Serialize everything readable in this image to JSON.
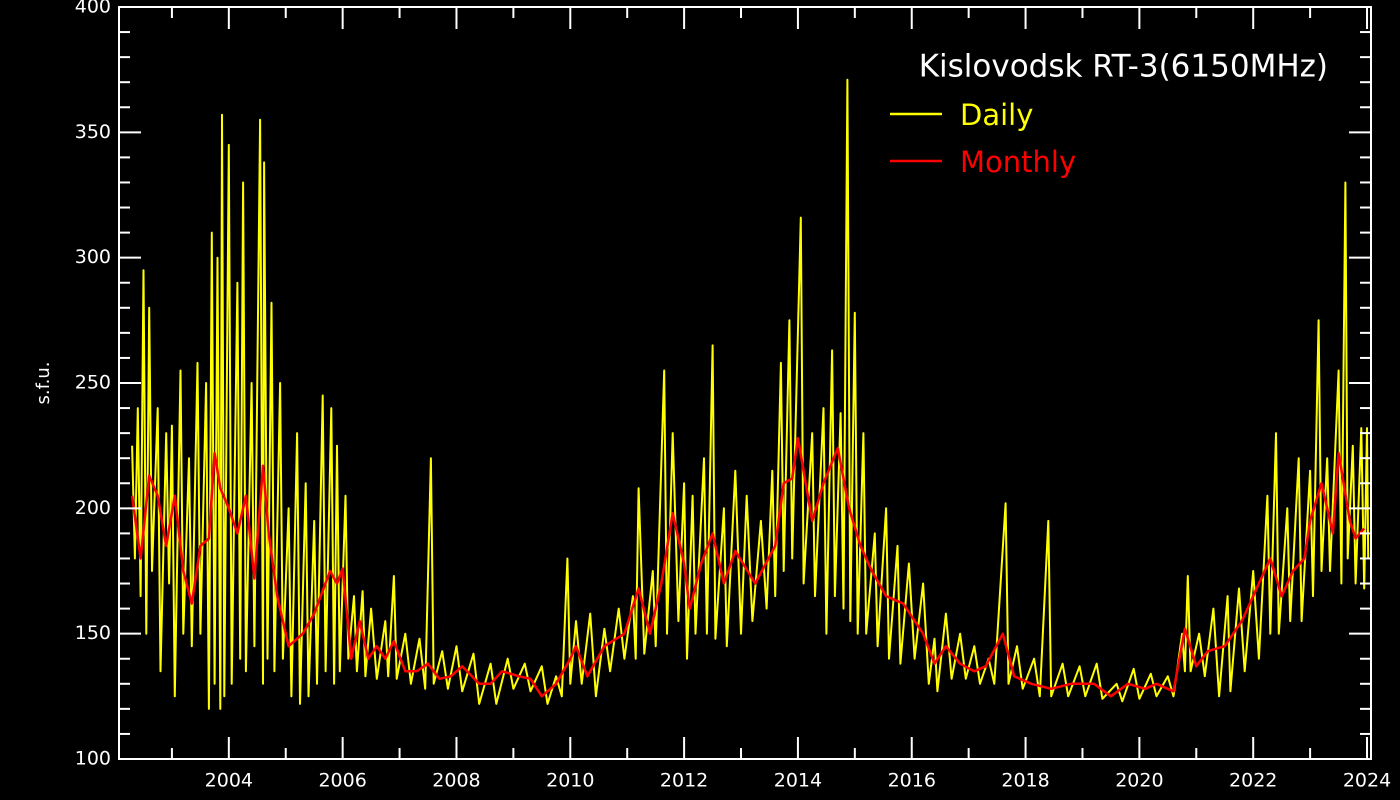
{
  "chart_data": {
    "type": "line",
    "title": "Kislovodsk RT-3(6150MHz)",
    "y_label": "s.f.u.",
    "legend": "upper right",
    "xlim": [
      2002.07,
      2024.07
    ],
    "xticks": [
      2004,
      2006,
      2008,
      2010,
      2012,
      2014,
      2016,
      2018,
      2020,
      2022,
      2024
    ],
    "xminorticks": [
      2003,
      2005,
      2007,
      2009,
      2011,
      2013,
      2015,
      2017,
      2019,
      2021,
      2023
    ],
    "ylim": [
      100,
      400
    ],
    "yticks": [
      100,
      150,
      200,
      250,
      300,
      350,
      400
    ],
    "yminorticks": [
      110,
      120,
      130,
      140,
      160,
      170,
      180,
      190,
      210,
      220,
      230,
      240,
      260,
      270,
      280,
      290,
      310,
      320,
      330,
      340,
      360,
      370,
      380,
      390
    ],
    "series": [
      {
        "name": "Daily",
        "color": "#ffff00",
        "x": [
          2002.3,
          2002.35,
          2002.4,
          2002.45,
          2002.5,
          2002.55,
          2002.6,
          2002.65,
          2002.75,
          2002.8,
          2002.9,
          2002.95,
          2003.0,
          2003.05,
          2003.15,
          2003.2,
          2003.3,
          2003.35,
          2003.45,
          2003.5,
          2003.6,
          2003.65,
          2003.7,
          2003.75,
          2003.8,
          2003.85,
          2003.88,
          2003.92,
          2004.0,
          2004.05,
          2004.15,
          2004.2,
          2004.25,
          2004.3,
          2004.4,
          2004.45,
          2004.55,
          2004.6,
          2004.62,
          2004.68,
          2004.75,
          2004.8,
          2004.9,
          2004.95,
          2005.05,
          2005.1,
          2005.2,
          2005.25,
          2005.35,
          2005.4,
          2005.5,
          2005.55,
          2005.65,
          2005.7,
          2005.8,
          2005.85,
          2005.9,
          2005.95,
          2006.05,
          2006.1,
          2006.2,
          2006.25,
          2006.35,
          2006.4,
          2006.5,
          2006.6,
          2006.75,
          2006.8,
          2006.9,
          2006.95,
          2007.1,
          2007.2,
          2007.35,
          2007.45,
          2007.55,
          2007.6,
          2007.75,
          2007.85,
          2008.0,
          2008.1,
          2008.3,
          2008.4,
          2008.6,
          2008.7,
          2008.9,
          2009.0,
          2009.2,
          2009.3,
          2009.5,
          2009.6,
          2009.75,
          2009.85,
          2009.95,
          2010.0,
          2010.1,
          2010.2,
          2010.35,
          2010.45,
          2010.6,
          2010.7,
          2010.85,
          2010.95,
          2011.1,
          2011.15,
          2011.2,
          2011.3,
          2011.45,
          2011.5,
          2011.65,
          2011.7,
          2011.8,
          2011.9,
          2012.0,
          2012.05,
          2012.15,
          2012.2,
          2012.35,
          2012.4,
          2012.5,
          2012.55,
          2012.7,
          2012.75,
          2012.9,
          2013.0,
          2013.1,
          2013.2,
          2013.35,
          2013.45,
          2013.55,
          2013.6,
          2013.7,
          2013.75,
          2013.85,
          2013.9,
          2014.05,
          2014.1,
          2014.25,
          2014.3,
          2014.45,
          2014.5,
          2014.6,
          2014.65,
          2014.75,
          2014.8,
          2014.87,
          2014.92,
          2015.0,
          2015.05,
          2015.15,
          2015.2,
          2015.35,
          2015.4,
          2015.55,
          2015.6,
          2015.75,
          2015.8,
          2015.95,
          2016.05,
          2016.2,
          2016.3,
          2016.4,
          2016.45,
          2016.6,
          2016.7,
          2016.85,
          2016.95,
          2017.1,
          2017.2,
          2017.35,
          2017.45,
          2017.65,
          2017.7,
          2017.85,
          2017.95,
          2018.15,
          2018.25,
          2018.4,
          2018.45,
          2018.65,
          2018.75,
          2018.95,
          2019.05,
          2019.25,
          2019.35,
          2019.6,
          2019.7,
          2019.9,
          2020.0,
          2020.2,
          2020.3,
          2020.5,
          2020.6,
          2020.75,
          2020.8,
          2020.85,
          2020.9,
          2021.05,
          2021.15,
          2021.3,
          2021.4,
          2021.55,
          2021.6,
          2021.75,
          2021.85,
          2022.0,
          2022.1,
          2022.25,
          2022.3,
          2022.4,
          2022.45,
          2022.6,
          2022.65,
          2022.8,
          2022.85,
          2023.0,
          2023.05,
          2023.15,
          2023.2,
          2023.3,
          2023.35,
          2023.5,
          2023.55,
          2023.62,
          2023.66,
          2023.75,
          2023.8,
          2023.9,
          2023.95,
          2024.0,
          2024.02
        ],
        "values": [
          225,
          180,
          240,
          165,
          295,
          150,
          280,
          175,
          240,
          135,
          230,
          170,
          233,
          125,
          255,
          150,
          220,
          145,
          258,
          150,
          250,
          120,
          310,
          130,
          300,
          120,
          357,
          125,
          345,
          130,
          290,
          140,
          330,
          135,
          250,
          145,
          355,
          130,
          338,
          140,
          282,
          135,
          250,
          140,
          200,
          125,
          230,
          122,
          210,
          125,
          195,
          130,
          245,
          135,
          240,
          130,
          225,
          135,
          205,
          140,
          165,
          135,
          167,
          133,
          160,
          132,
          155,
          133,
          173,
          132,
          150,
          130,
          148,
          128,
          220,
          130,
          143,
          128,
          145,
          127,
          142,
          122,
          138,
          122,
          140,
          128,
          138,
          127,
          137,
          122,
          133,
          125,
          180,
          130,
          155,
          130,
          158,
          125,
          152,
          135,
          160,
          140,
          165,
          140,
          208,
          142,
          175,
          145,
          255,
          150,
          230,
          155,
          210,
          140,
          205,
          150,
          220,
          150,
          265,
          148,
          200,
          145,
          215,
          150,
          205,
          155,
          195,
          160,
          215,
          165,
          258,
          175,
          275,
          180,
          316,
          170,
          230,
          165,
          240,
          150,
          263,
          165,
          238,
          160,
          371,
          155,
          278,
          150,
          230,
          150,
          190,
          145,
          200,
          140,
          185,
          138,
          178,
          140,
          170,
          130,
          148,
          127,
          158,
          132,
          150,
          132,
          145,
          130,
          140,
          130,
          202,
          130,
          145,
          128,
          140,
          125,
          195,
          125,
          138,
          125,
          137,
          125,
          138,
          124,
          130,
          123,
          136,
          124,
          134,
          125,
          133,
          125,
          150,
          135,
          173,
          135,
          150,
          133,
          160,
          125,
          165,
          127,
          168,
          135,
          175,
          140,
          205,
          150,
          230,
          150,
          200,
          155,
          220,
          155,
          215,
          165,
          275,
          175,
          220,
          175,
          255,
          170,
          330,
          180,
          225,
          170,
          232,
          168,
          232,
          180
        ]
      },
      {
        "name": "Monthly",
        "color": "#ff0000",
        "x": [
          2002.3,
          2002.45,
          2002.6,
          2002.75,
          2002.9,
          2003.05,
          2003.2,
          2003.35,
          2003.5,
          2003.65,
          2003.75,
          2003.85,
          2004.0,
          2004.15,
          2004.3,
          2004.45,
          2004.6,
          2004.7,
          2004.85,
          2005.05,
          2005.3,
          2005.5,
          2005.78,
          2005.9,
          2006.0,
          2006.15,
          2006.3,
          2006.45,
          2006.6,
          2006.75,
          2006.9,
          2007.1,
          2007.3,
          2007.5,
          2007.7,
          2007.9,
          2008.1,
          2008.4,
          2008.6,
          2008.8,
          2009.1,
          2009.3,
          2009.5,
          2009.75,
          2010.0,
          2010.1,
          2010.3,
          2010.6,
          2010.95,
          2011.2,
          2011.4,
          2011.6,
          2011.8,
          2012.0,
          2012.1,
          2012.3,
          2012.5,
          2012.7,
          2012.9,
          2013.25,
          2013.6,
          2013.75,
          2013.9,
          2014.0,
          2014.25,
          2014.45,
          2014.7,
          2014.9,
          2015.1,
          2015.3,
          2015.55,
          2015.85,
          2016.2,
          2016.4,
          2016.6,
          2016.85,
          2017.1,
          2017.3,
          2017.6,
          2017.8,
          2018.1,
          2018.45,
          2018.8,
          2019.2,
          2019.5,
          2019.8,
          2020.1,
          2020.3,
          2020.6,
          2020.8,
          2021.0,
          2021.2,
          2021.5,
          2021.8,
          2022.1,
          2022.3,
          2022.5,
          2022.7,
          2022.9,
          2023.0,
          2023.2,
          2023.4,
          2023.5,
          2023.7,
          2023.8,
          2023.95
        ],
        "values": [
          205,
          180,
          213,
          205,
          185,
          205,
          175,
          162,
          185,
          188,
          222,
          208,
          200,
          190,
          205,
          172,
          217,
          190,
          165,
          145,
          150,
          158,
          175,
          170,
          176,
          140,
          155,
          140,
          145,
          140,
          147,
          135,
          135,
          138,
          132,
          133,
          137,
          130,
          130,
          135,
          133,
          132,
          125,
          130,
          140,
          145,
          133,
          145,
          150,
          168,
          150,
          170,
          198,
          178,
          160,
          178,
          190,
          170,
          183,
          170,
          185,
          210,
          212,
          228,
          195,
          210,
          224,
          200,
          185,
          175,
          165,
          162,
          150,
          138,
          145,
          138,
          135,
          137,
          150,
          133,
          130,
          128,
          130,
          130,
          125,
          130,
          128,
          130,
          127,
          152,
          137,
          143,
          145,
          155,
          170,
          180,
          165,
          175,
          180,
          195,
          210,
          190,
          222,
          195,
          188,
          192
        ]
      }
    ]
  }
}
